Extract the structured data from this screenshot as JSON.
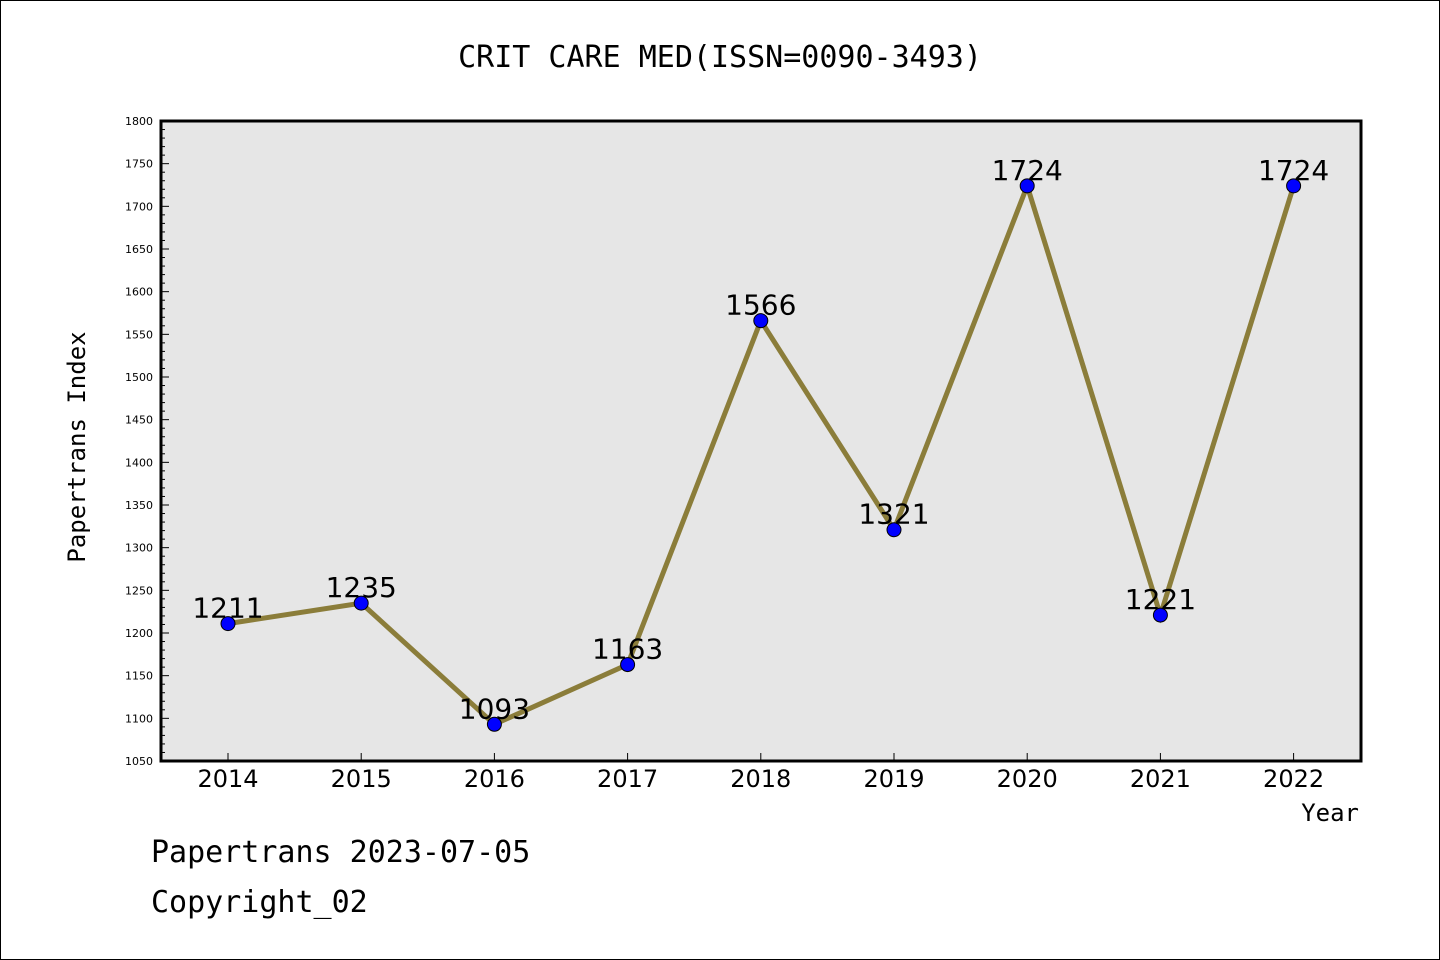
{
  "chart_data": {
    "type": "line",
    "title": "CRIT CARE MED(ISSN=0090-3493)",
    "xlabel": "Year",
    "ylabel": "Papertrans Index",
    "categories": [
      "2014",
      "2015",
      "2016",
      "2017",
      "2018",
      "2019",
      "2020",
      "2021",
      "2022"
    ],
    "series": [
      {
        "values": [
          1211,
          1235,
          1093,
          1163,
          1566,
          1321,
          1724,
          1221,
          1724
        ]
      }
    ],
    "data_labels": [
      "1211",
      "1235",
      "1093",
      "1163",
      "1566",
      "1321",
      "1724",
      "1221",
      "1724"
    ],
    "ylim": [
      1050,
      1800
    ],
    "yticks": [
      1050,
      1100,
      1150,
      1200,
      1250,
      1300,
      1350,
      1400,
      1450,
      1500,
      1550,
      1600,
      1650,
      1700,
      1750,
      1800
    ],
    "ytick_labels": [
      "1050",
      "1100",
      "1150",
      "1200",
      "1250",
      "1300",
      "1350",
      "1400",
      "1450",
      "1500",
      "1550",
      "1600",
      "1650",
      "1700",
      "1750",
      "1800"
    ],
    "grid": false,
    "colors": {
      "line": "#8B7D3A",
      "marker_fill": "#0000FF",
      "plot_background": "#E6E6E6"
    }
  },
  "footer": {
    "line1": "Papertrans 2023-07-05",
    "line2": "Copyright_02"
  }
}
